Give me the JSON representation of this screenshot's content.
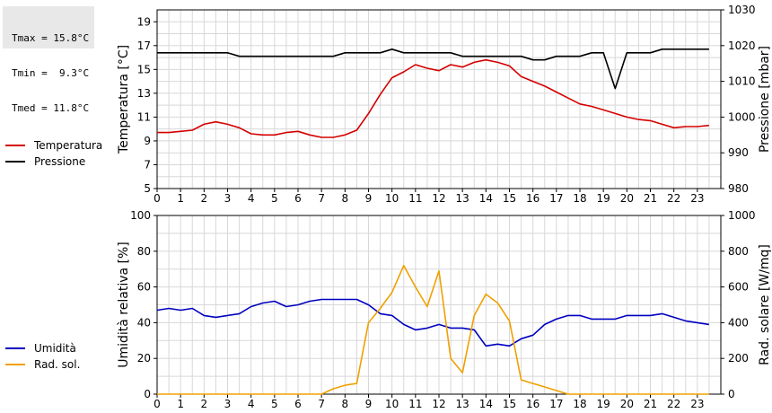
{
  "stats": {
    "tmax": "Tmax = 15.8°C",
    "tmin": "Tmin =  9.3°C",
    "tmed": "Tmed = 11.8°C"
  },
  "chart_data": [
    {
      "type": "line",
      "xlabel": "",
      "x_ticks": [
        0,
        1,
        2,
        3,
        4,
        5,
        6,
        7,
        8,
        9,
        10,
        11,
        12,
        13,
        14,
        15,
        16,
        17,
        18,
        19,
        20,
        21,
        22,
        23
      ],
      "xlim": [
        0,
        24
      ],
      "grid": true,
      "legend_placement": "left",
      "y_left": {
        "label": "Temperatura [°C]",
        "lim": [
          5,
          20
        ],
        "ticks": [
          5,
          7,
          9,
          11,
          13,
          15,
          17,
          19
        ]
      },
      "y_right": {
        "label": "Pressione [mbar]",
        "lim": [
          980,
          1030
        ],
        "ticks": [
          980,
          990,
          1000,
          1010,
          1020,
          1030
        ]
      },
      "series": [
        {
          "name": "Temperatura",
          "axis": "left",
          "color": "#d40000",
          "x": [
            0,
            0.5,
            1,
            1.5,
            2,
            2.5,
            3,
            3.5,
            4,
            4.5,
            5,
            5.5,
            6,
            6.5,
            7,
            7.5,
            8,
            8.5,
            9,
            9.5,
            10,
            10.5,
            11,
            11.5,
            12,
            12.5,
            13,
            13.5,
            14,
            14.5,
            15,
            15.5,
            16,
            16.5,
            17,
            17.5,
            18,
            18.5,
            19,
            19.5,
            20,
            20.5,
            21,
            21.5,
            22,
            22.5,
            23,
            23.5
          ],
          "values": [
            9.7,
            9.7,
            9.8,
            9.9,
            10.4,
            10.6,
            10.4,
            10.1,
            9.6,
            9.5,
            9.5,
            9.7,
            9.8,
            9.5,
            9.3,
            9.3,
            9.5,
            9.9,
            11.3,
            12.9,
            14.3,
            14.8,
            15.4,
            15.1,
            14.9,
            15.4,
            15.2,
            15.6,
            15.8,
            15.6,
            15.3,
            14.4,
            14.0,
            13.6,
            13.1,
            12.6,
            12.1,
            11.9,
            11.6,
            11.3,
            11.0,
            10.8,
            10.7,
            10.4,
            10.1,
            10.2,
            10.2,
            10.3
          ]
        },
        {
          "name": "Pressione",
          "axis": "right",
          "color": "#000000",
          "x": [
            0,
            3,
            3.5,
            7.5,
            8,
            9.5,
            10,
            10.5,
            12.5,
            13,
            15.5,
            16,
            16.5,
            17,
            18,
            18.5,
            19,
            19.3,
            19.5,
            20,
            21,
            21.5,
            23.5
          ],
          "values": [
            1018,
            1018,
            1017,
            1017,
            1018,
            1018,
            1019,
            1018,
            1018,
            1017,
            1017,
            1016,
            1016,
            1017,
            1017,
            1018,
            1018,
            1012,
            1008,
            1018,
            1018,
            1019,
            1019
          ]
        }
      ]
    },
    {
      "type": "line",
      "xlabel": "",
      "x_ticks": [
        0,
        1,
        2,
        3,
        4,
        5,
        6,
        7,
        8,
        9,
        10,
        11,
        12,
        13,
        14,
        15,
        16,
        17,
        18,
        19,
        20,
        21,
        22,
        23
      ],
      "xlim": [
        0,
        24
      ],
      "grid": true,
      "legend_placement": "left",
      "y_left": {
        "label": "Umidità relativa [%]",
        "lim": [
          0,
          100
        ],
        "ticks": [
          0,
          20,
          40,
          60,
          80,
          100
        ]
      },
      "y_right": {
        "label": "Rad. solare [W/mq]",
        "lim": [
          0,
          1000
        ],
        "ticks": [
          0,
          200,
          400,
          600,
          800,
          1000
        ]
      },
      "series": [
        {
          "name": "Umidità",
          "axis": "left",
          "color": "#0000c0",
          "x": [
            0,
            0.5,
            1,
            1.5,
            2,
            2.5,
            3,
            3.5,
            4,
            4.5,
            5,
            5.5,
            6,
            6.5,
            7,
            7.5,
            8,
            8.5,
            9,
            9.5,
            10,
            10.5,
            11,
            11.5,
            12,
            12.5,
            13,
            13.5,
            14,
            14.5,
            15,
            15.5,
            16,
            16.5,
            17,
            17.5,
            18,
            18.5,
            19,
            19.5,
            20,
            20.5,
            21,
            21.5,
            22,
            22.5,
            23,
            23.5
          ],
          "values": [
            47,
            48,
            47,
            48,
            44,
            43,
            44,
            45,
            49,
            51,
            52,
            49,
            50,
            52,
            53,
            53,
            53,
            53,
            50,
            45,
            44,
            39,
            36,
            37,
            39,
            37,
            37,
            36,
            27,
            28,
            27,
            31,
            33,
            39,
            42,
            44,
            44,
            42,
            42,
            42,
            44,
            44,
            44,
            45,
            43,
            41,
            40,
            39
          ]
        },
        {
          "name": "Rad. sol.",
          "axis": "right",
          "color": "#f0a000",
          "x": [
            0,
            1,
            2,
            3,
            4,
            5,
            6,
            7,
            7.5,
            8,
            8.5,
            9,
            9.5,
            10,
            10.5,
            11,
            11.5,
            12,
            12.5,
            13,
            13.5,
            14,
            14.5,
            15,
            15.5,
            16,
            16.5,
            17,
            17.5,
            18,
            19,
            20,
            21,
            22,
            23,
            23.5
          ],
          "values": [
            0,
            0,
            0,
            0,
            0,
            0,
            0,
            0,
            30,
            50,
            60,
            400,
            480,
            570,
            720,
            600,
            490,
            690,
            200,
            120,
            440,
            560,
            510,
            410,
            80,
            60,
            40,
            20,
            0,
            0,
            0,
            0,
            0,
            0,
            0,
            0
          ]
        }
      ]
    }
  ]
}
